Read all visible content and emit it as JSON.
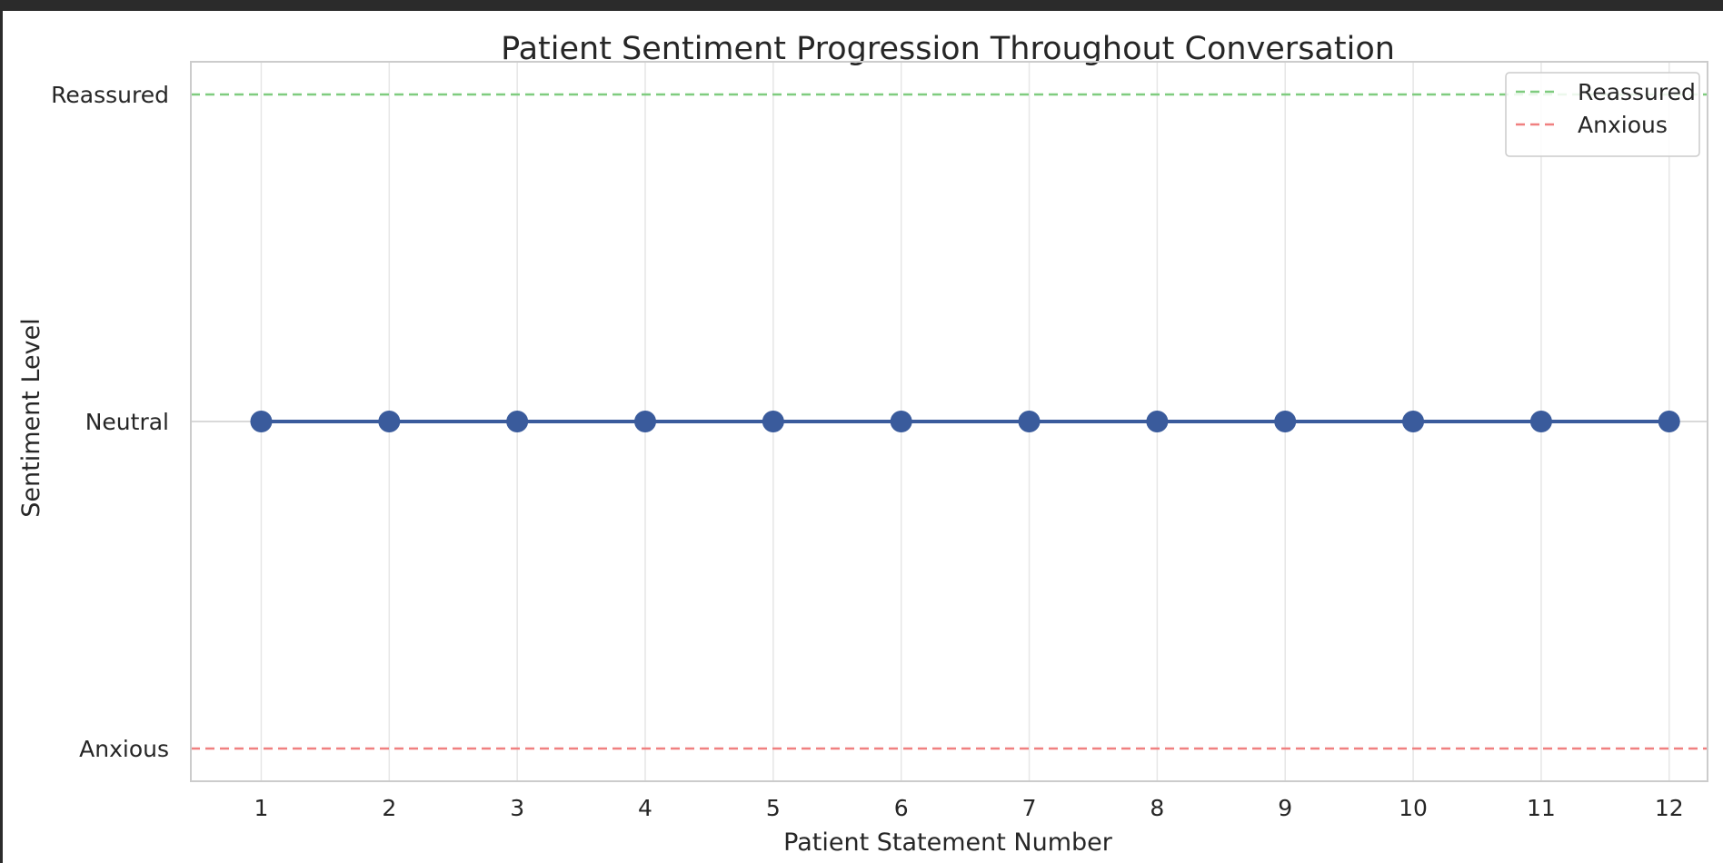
{
  "chart_data": {
    "type": "line",
    "title": "Patient Sentiment Progression Throughout Conversation",
    "xlabel": "Patient Statement Number",
    "ylabel": "Sentiment Level",
    "x": [
      1,
      2,
      3,
      4,
      5,
      6,
      7,
      8,
      9,
      10,
      11,
      12
    ],
    "xlim": [
      0.45,
      12.3
    ],
    "ylim": [
      -1.1,
      1.1
    ],
    "yticks": [
      -1,
      0,
      1
    ],
    "yticklabels": [
      "Anxious",
      "Neutral",
      "Reassured"
    ],
    "grid": true,
    "legend_position": "top-right",
    "series": [
      {
        "values": [
          0,
          0,
          0,
          0,
          0,
          0,
          0,
          0,
          0,
          0,
          0,
          0
        ],
        "color": "#3a5b9c",
        "marker": "circle"
      }
    ],
    "reference_lines": [
      {
        "name": "Reassured",
        "y": 1,
        "color": "#7fcc7f",
        "style": "dashed"
      },
      {
        "name": "Anxious",
        "y": -1,
        "color": "#f08080",
        "style": "dashed"
      }
    ]
  }
}
